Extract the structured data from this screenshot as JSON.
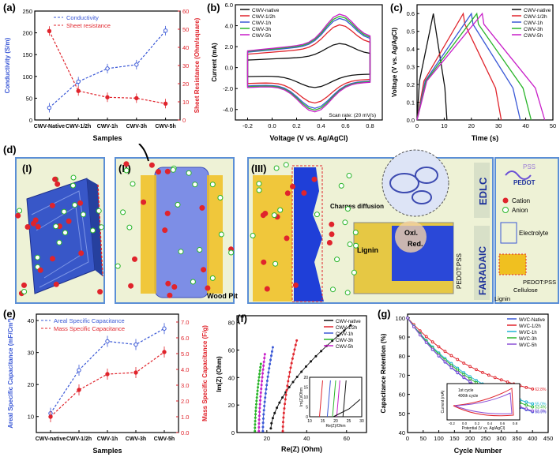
{
  "colors": {
    "blue": "#3a58d6",
    "red": "#e0242c",
    "black": "#111111",
    "magenta": "#c81ec8",
    "green": "#2ab52a",
    "cyan": "#1fb4d2",
    "purple": "#8a4fd6",
    "panel_bg": "#eef2d6",
    "panel_border": "#5b8fd6"
  },
  "chart_data": [
    {
      "id": "a",
      "label": "(a)",
      "type": "line",
      "categories": [
        "CWV-Native",
        "CWV-1/2h",
        "CWV-1h",
        "CWV-3h",
        "CWV-5h"
      ],
      "series": [
        {
          "name": "Conductivity",
          "axis": "left",
          "values": [
            28,
            88,
            118,
            127,
            205
          ]
        },
        {
          "name": "Sheet resistance",
          "axis": "right",
          "values": [
            49,
            16,
            12.5,
            12,
            9
          ]
        }
      ],
      "xlabel": "Samples",
      "ylabel": "Conductivity (S/m)",
      "y2label": "Sheet Resistance (Ohm/square)",
      "ylim": [
        0,
        250
      ],
      "yticks": [
        0,
        50,
        100,
        150,
        200,
        250
      ],
      "y2lim": [
        0,
        60
      ],
      "y2ticks": [
        0,
        10,
        20,
        30,
        40,
        50,
        60
      ]
    },
    {
      "id": "b",
      "label": "(b)",
      "type": "line",
      "subtype": "cyclic voltammetry",
      "legend": [
        "CWV-native",
        "CWV-1/2h",
        "CWV-1h",
        "CWV-3h",
        "CWV-5h"
      ],
      "xlabel": "Voltage (V vs. Ag/AgCl)",
      "ylabel": "Current (mA)",
      "xlim": [
        -0.3,
        0.9
      ],
      "xticks": [
        -0.2,
        0.0,
        0.2,
        0.4,
        0.6,
        0.8
      ],
      "ylim": [
        -5.0,
        6.0
      ],
      "yticks": [
        -4.0,
        -2.0,
        0.0,
        2.0,
        4.0,
        6.0
      ],
      "annotation": "Scan rate: (20 mV/s)"
    },
    {
      "id": "c",
      "label": "(c)",
      "type": "line",
      "subtype": "galvanostatic charge-discharge",
      "legend": [
        "CWV-native",
        "CWV-1/2h",
        "CWV-1h",
        "CWV-3h",
        "CWV-5h"
      ],
      "xlabel": "Time (s)",
      "ylabel": "Voltage (V vs. Ag/AgCl)",
      "xlim": [
        0,
        50
      ],
      "xticks": [
        0,
        10,
        20,
        30,
        40,
        50
      ],
      "ylim": [
        0,
        0.65
      ],
      "yticks": [
        0.0,
        0.1,
        0.2,
        0.3,
        0.4,
        0.5,
        0.6
      ],
      "series": [
        {
          "name": "CWV-native",
          "peak": 6,
          "end": 11
        },
        {
          "name": "CWV-1/2h",
          "peak": 17,
          "end": 31
        },
        {
          "name": "CWV-1h",
          "peak": 20,
          "end": 38
        },
        {
          "name": "CWV-3h",
          "peak": 22,
          "end": 42
        },
        {
          "name": "CWV-5h",
          "peak": 24,
          "end": 47
        }
      ]
    },
    {
      "id": "e",
      "label": "(e)",
      "type": "line",
      "categories": [
        "CWV-native",
        "CWV-1/2h",
        "CWV-1h",
        "CWV-3h",
        "CWV-5h"
      ],
      "series": [
        {
          "name": "Areal Specific Capacitance",
          "axis": "left",
          "values": [
            11,
            24.5,
            33.5,
            32.5,
            37.5
          ]
        },
        {
          "name": "Mass Specific Capacitance",
          "axis": "right",
          "values": [
            1.0,
            2.7,
            3.7,
            3.8,
            5.1
          ]
        }
      ],
      "xlabel": "Samples",
      "ylabel": "Areal Specific Capacitance (mF/Cm²)",
      "y2label": "Mass Specific Capacitance (F/g)",
      "ylim": [
        5,
        42
      ],
      "yticks": [
        10,
        20,
        30,
        40
      ],
      "y2lim": [
        0,
        7.5
      ],
      "y2ticks": [
        0.0,
        1.0,
        2.0,
        3.0,
        4.0,
        5.0,
        6.0,
        7.0
      ]
    },
    {
      "id": "f",
      "label": "(f)",
      "type": "scatter",
      "subtype": "Nyquist plot",
      "legend": [
        "CWV-native",
        "CWV-1/2h",
        "CWV-1h",
        "CWV-3h",
        "CWV-5h"
      ],
      "xlabel": "Re(Z) (Ohm)",
      "ylabel": "Im(Z) (Ohm)",
      "xlim": [
        5,
        70
      ],
      "xticks": [
        20,
        40,
        60
      ],
      "ylim": [
        0,
        85
      ],
      "yticks": [
        0,
        20,
        40,
        60,
        80
      ],
      "inset": {
        "xlabel": "Re(Z)/Ohm",
        "ylabel": "Im(Z)/Ohm",
        "xticks": [
          10,
          15,
          20,
          25,
          30
        ],
        "yticks": [
          0,
          5,
          10,
          15,
          20
        ]
      },
      "series": [
        {
          "name": "CWV-native",
          "start": [
            22,
            3
          ],
          "end": [
            62,
            78
          ]
        },
        {
          "name": "CWV-1/2h",
          "start": [
            28,
            1
          ],
          "end": [
            35,
            67
          ]
        },
        {
          "name": "CWV-1h",
          "start": [
            18,
            1
          ],
          "end": [
            23,
            62
          ]
        },
        {
          "name": "CWV-3h",
          "start": [
            14,
            1
          ],
          "end": [
            17,
            50
          ]
        },
        {
          "name": "CWV-5h",
          "start": [
            16,
            1
          ],
          "end": [
            19,
            57
          ]
        }
      ]
    },
    {
      "id": "g",
      "label": "(g)",
      "type": "line",
      "subtype": "cycling stability",
      "legend": [
        "WVC-Native",
        "WVC-1/2h",
        "WVC-1h",
        "WVC-3h",
        "WVC-5h"
      ],
      "xlabel": "Cycle Number",
      "ylabel": "Capacitance Retention (%)",
      "xlim": [
        0,
        450
      ],
      "xticks": [
        0,
        50,
        100,
        150,
        200,
        250,
        300,
        350,
        400,
        450
      ],
      "ylim": [
        40,
        102
      ],
      "yticks": [
        40,
        50,
        60,
        70,
        80,
        90,
        100
      ],
      "series": [
        {
          "name": "WVC-Native",
          "end": 50.9,
          "label": "50.9%"
        },
        {
          "name": "WVC-1/2h",
          "end": 62.8,
          "label": "62.8%"
        },
        {
          "name": "WVC-1h",
          "end": 55.0,
          "label": "55.0%"
        },
        {
          "name": "WVC-3h",
          "end": 53.4,
          "label": "53.4%"
        },
        {
          "name": "WVC-5h",
          "end": 51.3,
          "label": "51.3%"
        }
      ],
      "inset": {
        "legend": [
          "1st cycle",
          "400th cycle"
        ],
        "xlabel": "Potential (V vs. Ag/AgCl)",
        "ylabel": "Current (mA)",
        "xticks": [
          -0.2,
          0.0,
          0.2,
          0.4,
          0.6,
          0.8
        ]
      }
    }
  ],
  "schematic": {
    "label": "(d)",
    "sub_labels": [
      "(I)",
      "(II)",
      "(III)"
    ],
    "annotations": {
      "wood_pit": "Wood Pit",
      "charges_diffusion": "Charges diffusion",
      "lignin": "Lignin",
      "oxi": "Oxi.",
      "red": "Red.",
      "pedot_pss_vertical": "PEDOT:PSS",
      "edlc": "EDLC",
      "faradaic": "FARADAIC"
    },
    "legend": {
      "pss": "PSS",
      "pedot": "PEDOT",
      "cation": "Cation",
      "anion": "Anion",
      "electrolyte": "Electrolyte",
      "pedot_pss": "PEDOT:PSS",
      "cellulose": "Cellulose",
      "lignin": "Lignin"
    }
  }
}
